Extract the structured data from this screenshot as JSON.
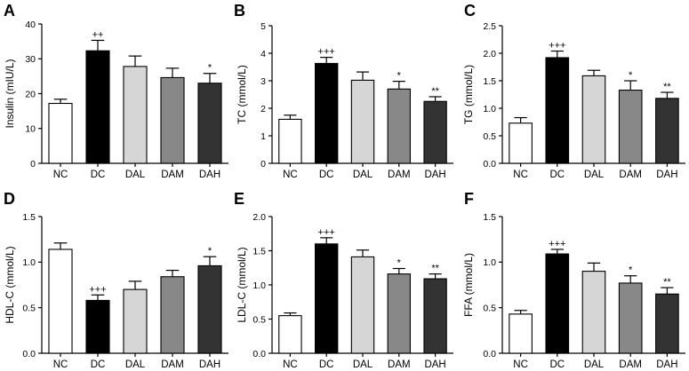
{
  "figure": {
    "description_title": ""
  },
  "colors": {
    "NC": "#ffffff",
    "DC": "#000000",
    "DAL": "#d6d6d6",
    "DAM": "#888888",
    "DAH": "#333333",
    "axis": "#000000"
  },
  "chart_data": [
    {
      "panel": "A",
      "type": "bar",
      "categories": [
        "NC",
        "DC",
        "DAL",
        "DAM",
        "DAH"
      ],
      "values": [
        17.2,
        32.3,
        27.8,
        24.6,
        23.0
      ],
      "errors": [
        1.2,
        3.0,
        3.0,
        2.7,
        2.8
      ],
      "significance": [
        "",
        "++",
        "",
        "",
        "*"
      ],
      "ylabel": "Insulin (mIU/L)",
      "xlabel": "",
      "ylim": [
        0,
        40
      ],
      "yticks": [
        0,
        10,
        20,
        30,
        40
      ],
      "yticklabels": [
        "0",
        "10",
        "20",
        "30",
        "40"
      ]
    },
    {
      "panel": "B",
      "type": "bar",
      "categories": [
        "NC",
        "DC",
        "DAL",
        "DAM",
        "DAH"
      ],
      "values": [
        1.6,
        3.63,
        3.02,
        2.7,
        2.25
      ],
      "errors": [
        0.15,
        0.22,
        0.3,
        0.28,
        0.17
      ],
      "significance": [
        "",
        "+++",
        "",
        "*",
        "**"
      ],
      "ylabel": "TC (mmol/L)",
      "xlabel": "",
      "ylim": [
        0,
        5
      ],
      "yticks": [
        0,
        1,
        2,
        3,
        4,
        5
      ],
      "yticklabels": [
        "0",
        "1",
        "2",
        "3",
        "4",
        "5"
      ]
    },
    {
      "panel": "C",
      "type": "bar",
      "categories": [
        "NC",
        "DC",
        "DAL",
        "DAM",
        "DAH"
      ],
      "values": [
        0.73,
        1.92,
        1.59,
        1.33,
        1.18
      ],
      "errors": [
        0.1,
        0.12,
        0.1,
        0.17,
        0.11
      ],
      "significance": [
        "",
        "+++",
        "",
        "*",
        "**"
      ],
      "ylabel": "TG (mmol/L)",
      "xlabel": "",
      "ylim": [
        0,
        2.5
      ],
      "yticks": [
        0,
        0.5,
        1.0,
        1.5,
        2.0,
        2.5
      ],
      "yticklabels": [
        "0.0",
        "0.5",
        "1.0",
        "1.5",
        "2.0",
        "2.5"
      ]
    },
    {
      "panel": "D",
      "type": "bar",
      "categories": [
        "NC",
        "DC",
        "DAL",
        "DAM",
        "DAH"
      ],
      "values": [
        1.14,
        0.58,
        0.7,
        0.84,
        0.96
      ],
      "errors": [
        0.07,
        0.06,
        0.09,
        0.07,
        0.1
      ],
      "significance": [
        "",
        "+++",
        "",
        "",
        "*"
      ],
      "ylabel": "HDL-C (mmol/L)",
      "xlabel": "",
      "ylim": [
        0,
        1.5
      ],
      "yticks": [
        0,
        0.5,
        1.0,
        1.5
      ],
      "yticklabels": [
        "0.0",
        "0.5",
        "1.0",
        "1.5"
      ]
    },
    {
      "panel": "E",
      "type": "bar",
      "categories": [
        "NC",
        "DC",
        "DAL",
        "DAM",
        "DAH"
      ],
      "values": [
        0.55,
        1.6,
        1.41,
        1.16,
        1.09
      ],
      "errors": [
        0.04,
        0.09,
        0.1,
        0.08,
        0.07
      ],
      "significance": [
        "",
        "+++",
        "",
        "*",
        "**"
      ],
      "ylabel": "LDL-C (mmol/L)",
      "xlabel": "",
      "ylim": [
        0,
        2.0
      ],
      "yticks": [
        0,
        0.5,
        1.0,
        1.5,
        2.0
      ],
      "yticklabels": [
        "0.0",
        "0.5",
        "1.0",
        "1.5",
        "2.0"
      ]
    },
    {
      "panel": "F",
      "type": "bar",
      "categories": [
        "NC",
        "DC",
        "DAL",
        "DAM",
        "DAH"
      ],
      "values": [
        0.43,
        1.09,
        0.9,
        0.77,
        0.65
      ],
      "errors": [
        0.04,
        0.05,
        0.09,
        0.08,
        0.07
      ],
      "significance": [
        "",
        "+++",
        "",
        "*",
        "**"
      ],
      "ylabel": "FFA (mmol/L)",
      "xlabel": "",
      "ylim": [
        0,
        1.5
      ],
      "yticks": [
        0,
        0.5,
        1.0,
        1.5
      ],
      "yticklabels": [
        "0.0",
        "0.5",
        "1.0",
        "1.5"
      ]
    }
  ]
}
